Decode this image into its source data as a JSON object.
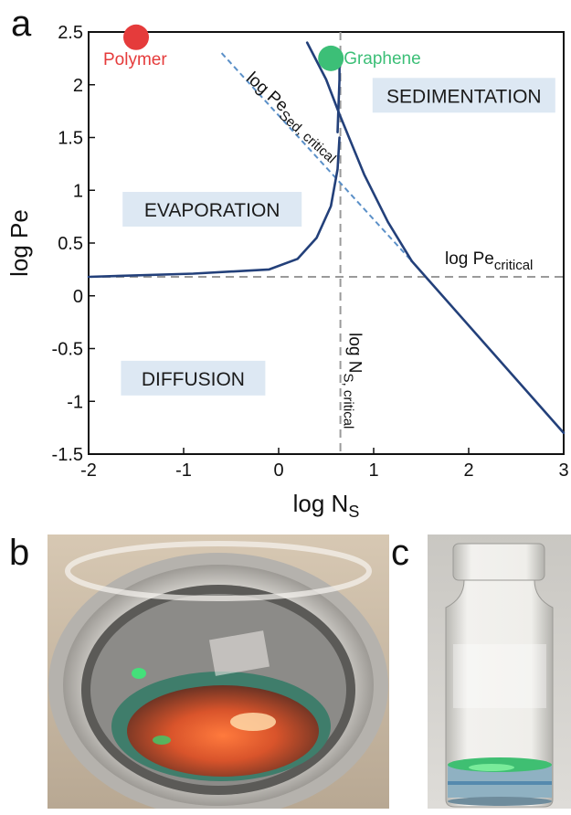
{
  "figure": {
    "panel_labels": {
      "a": "a",
      "b": "b",
      "c": "c"
    }
  },
  "chart_data": {
    "type": "line",
    "xlabel_main": "log N",
    "xlabel_sub": "S",
    "ylabel": "log Pe",
    "xlim": [
      -2,
      3
    ],
    "ylim": [
      -1.5,
      2.5
    ],
    "x_ticks": [
      "-2",
      "-1",
      "0",
      "1",
      "2",
      "3"
    ],
    "y_ticks": [
      "-1.5",
      "-1",
      "-0.5",
      "0",
      "0.5",
      "1",
      "1.5",
      "2",
      "2.5"
    ],
    "x_tick_values": [
      -2,
      -1,
      0,
      1,
      2,
      3
    ],
    "y_tick_values": [
      -1.5,
      -1,
      -0.5,
      0,
      0.5,
      1,
      1.5,
      2,
      2.5
    ],
    "grid": false,
    "colors": {
      "boundary": "#23407a",
      "sed_line": "#5b90c8",
      "critical_lines": "#9a9a9a",
      "polymer": "#e53b3b",
      "graphene": "#3cbf77",
      "region_box": "#dde8f3"
    },
    "series": [
      {
        "values_x": [
          -2,
          -0.9,
          -0.1,
          0.2,
          0.4,
          0.55,
          0.62,
          0.64
        ],
        "values_y": [
          0.18,
          0.21,
          0.25,
          0.35,
          0.55,
          0.85,
          1.2,
          1.5
        ]
      },
      {
        "values_x": [
          0.62,
          0.63,
          0.64,
          0.64
        ],
        "values_y": [
          1.55,
          1.8,
          2.05,
          2.25
        ]
      },
      {
        "values_x": [
          0.3,
          0.5,
          0.64,
          0.9,
          1.15,
          1.4
        ],
        "values_y": [
          2.4,
          2.05,
          1.72,
          1.15,
          0.7,
          0.33
        ]
      },
      {
        "values_x": [
          1.4,
          3.0
        ],
        "values_y": [
          0.33,
          -1.3
        ]
      }
    ],
    "sed_critical_line": {
      "x": [
        -0.6,
        1.4
      ],
      "y": [
        2.3,
        0.33
      ]
    },
    "pe_critical": 0.18,
    "ns_critical": 0.65,
    "points": [
      {
        "label": "Polymer",
        "x": -1.5,
        "y": 2.45,
        "color": "#e53b3b"
      },
      {
        "label": "Graphene",
        "x": 0.55,
        "y": 2.25,
        "color": "#3cbf77"
      }
    ],
    "regions": [
      {
        "label": "SEDIMENTATION"
      },
      {
        "label": "EVAPORATION"
      },
      {
        "label": "DIFFUSION"
      }
    ],
    "annotations": {
      "pe_sed_main": "log Pe",
      "pe_sed_sub": "Sed, critical",
      "pe_crit_main": "log Pe",
      "pe_crit_sub": "critical",
      "ns_crit_main": "log N",
      "ns_crit_sub": "S, critical"
    }
  },
  "photos": {
    "b": {
      "subject": "vial-top-view"
    },
    "c": {
      "subject": "vial-side-view"
    }
  }
}
